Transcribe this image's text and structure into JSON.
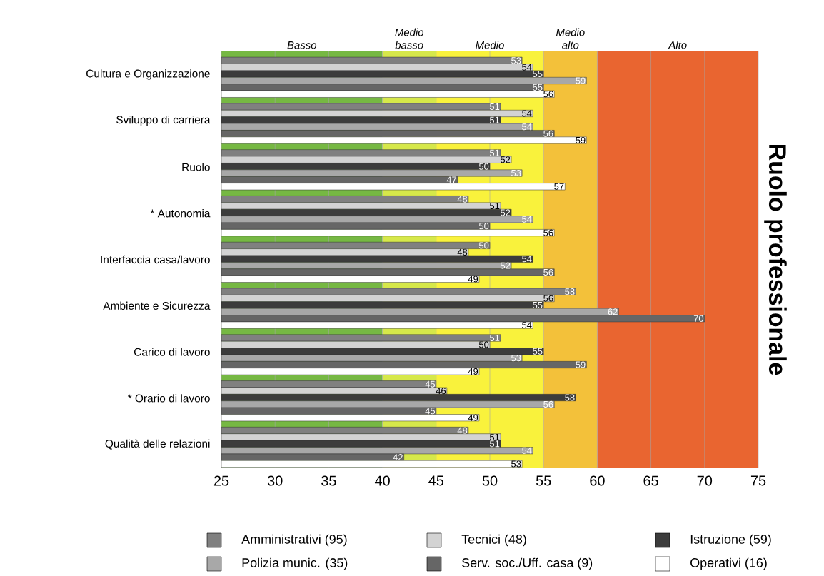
{
  "chart_data": {
    "type": "bar",
    "orientation": "horizontal",
    "title": "Ruolo professionale",
    "categories": [
      "Cultura e Organizzazione",
      "Sviluppo di carriera",
      "Ruolo",
      "* Autonomia",
      "Interfaccia casa/lavoro",
      "Ambiente e Sicurezza",
      "Carico di lavoro",
      "* Orario di lavoro",
      "Qualità delle relazioni"
    ],
    "series": [
      {
        "name": "Amministrativi (95)",
        "color": "#808080",
        "values": [
          53,
          51,
          51,
          48,
          50,
          58,
          51,
          45,
          48
        ]
      },
      {
        "name": "Tecnici (48)",
        "color": "#d3d3d3",
        "values": [
          54,
          54,
          52,
          51,
          48,
          56,
          50,
          46,
          51
        ]
      },
      {
        "name": "Istruzione (59)",
        "color": "#3c3c3c",
        "values": [
          55,
          51,
          50,
          52,
          54,
          55,
          55,
          58,
          51
        ]
      },
      {
        "name": "Polizia munic. (35)",
        "color": "#a8a8a8",
        "values": [
          59,
          54,
          53,
          54,
          52,
          62,
          53,
          56,
          54
        ]
      },
      {
        "name": "Serv. soc./Uff. casa (9)",
        "color": "#666666",
        "values": [
          55,
          56,
          47,
          50,
          56,
          70,
          59,
          45,
          42
        ]
      },
      {
        "name": "Operativi (16)",
        "color": "#ffffff",
        "values": [
          56,
          59,
          57,
          56,
          49,
          54,
          49,
          49,
          53
        ]
      }
    ],
    "xlim": [
      25,
      75
    ],
    "xticks": [
      25,
      30,
      35,
      40,
      45,
      50,
      55,
      60,
      65,
      70,
      75
    ],
    "bands": [
      {
        "axis": "x",
        "from": 25,
        "to": 40,
        "label": "Basso",
        "color": "#76b843"
      },
      {
        "axis": "x",
        "from": 40,
        "to": 45,
        "label": "Medio basso",
        "color": "#d6e84a"
      },
      {
        "axis": "x",
        "from": 45,
        "to": 55,
        "label": "Medio",
        "color": "#f9f23c"
      },
      {
        "axis": "x",
        "from": 55,
        "to": 60,
        "label": "Medio alto",
        "color": "#f3c13a"
      },
      {
        "axis": "x",
        "from": 60,
        "to": 75,
        "label": "Alto",
        "color": "#e96530"
      }
    ],
    "grid": "x",
    "legend": "bottom",
    "data_labels": true
  }
}
